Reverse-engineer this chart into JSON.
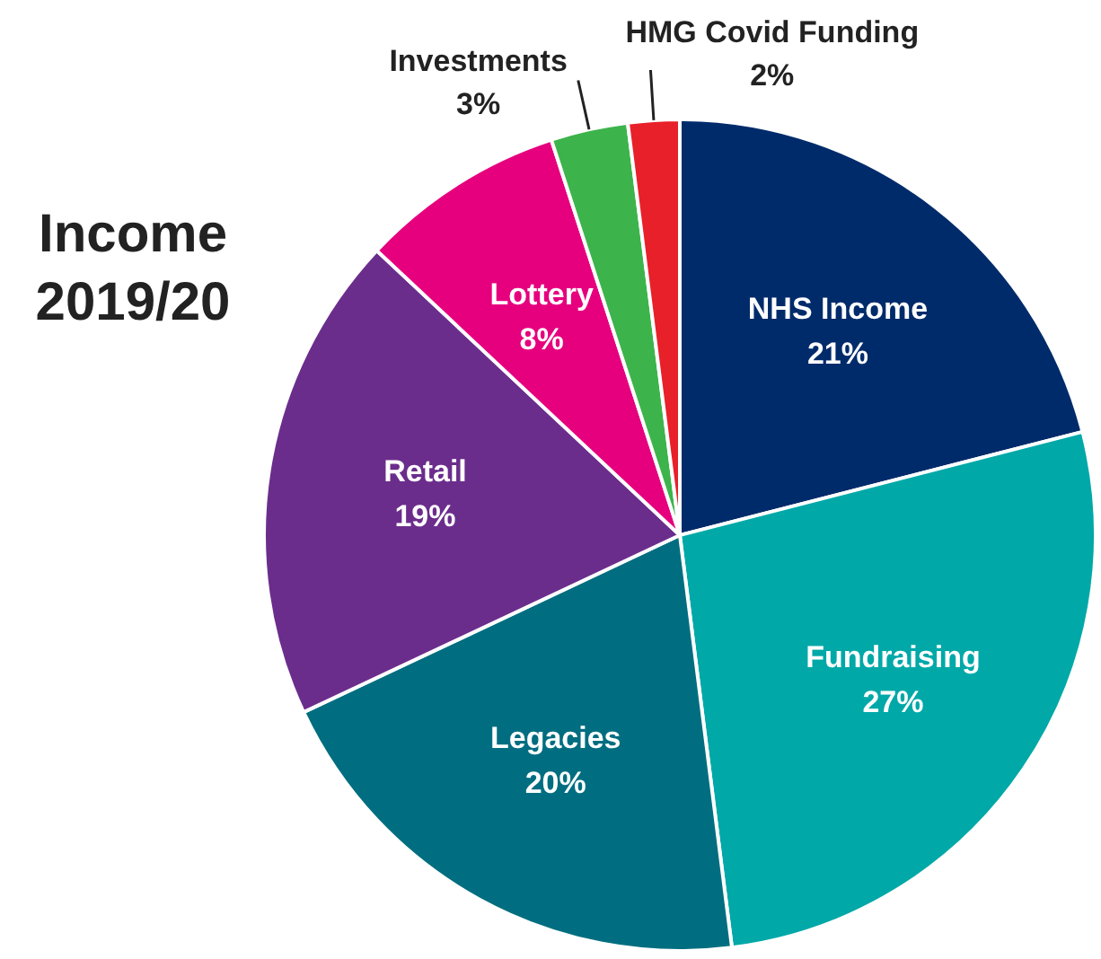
{
  "chart_data": {
    "type": "pie",
    "title": "Income 2019/20",
    "categories": [
      "NHS Income",
      "Fundraising",
      "Legacies",
      "Retail",
      "Lottery",
      "Investments",
      "HMG Covid Funding"
    ],
    "values": [
      21,
      27,
      20,
      19,
      8,
      3,
      2
    ],
    "value_labels": [
      "21%",
      "27%",
      "20%",
      "19%",
      "8%",
      "3%",
      "2%"
    ],
    "colors": [
      "#002b6b",
      "#00a8a8",
      "#006e80",
      "#6b2d8c",
      "#e6007e",
      "#3cb44b",
      "#e8202a"
    ],
    "legend": false
  }
}
